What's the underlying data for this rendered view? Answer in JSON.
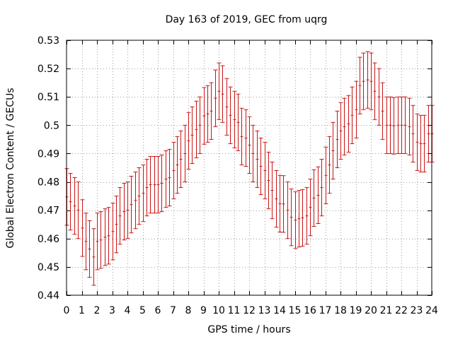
{
  "chart_data": {
    "type": "scatter",
    "title": "Day 163 of 2019, GEC from uqrg",
    "xlabel": "GPS time / hours",
    "ylabel": "Global Electron Content / GECUs",
    "xlim": [
      0,
      24
    ],
    "ylim": [
      0.44,
      0.53
    ],
    "x_ticks": [
      0,
      1,
      2,
      3,
      4,
      5,
      6,
      7,
      8,
      9,
      10,
      11,
      12,
      13,
      14,
      15,
      16,
      17,
      18,
      19,
      20,
      21,
      22,
      23,
      24
    ],
    "x_tick_labels": [
      "0",
      "1",
      "2",
      "3",
      "4",
      "5",
      "6",
      "7",
      "8",
      "9",
      "10",
      "11",
      "12",
      "13",
      "14",
      "15",
      "16",
      "17",
      "18",
      "19",
      "20",
      "21",
      "22",
      "23",
      "24"
    ],
    "y_ticks": [
      0.44,
      0.45,
      0.46,
      0.47,
      0.48,
      0.49,
      0.5,
      0.51,
      0.52,
      0.53
    ],
    "y_tick_labels": [
      "0.44",
      "0.45",
      "0.46",
      "0.47",
      "0.48",
      "0.49",
      "0.5",
      "0.51",
      "0.52",
      "0.53"
    ],
    "grid": true,
    "error": 0.01,
    "series": [
      {
        "name": "GEC",
        "color": "#c81414",
        "x": [
          0,
          0.25,
          0.5,
          0.75,
          1,
          1.25,
          1.5,
          1.75,
          2,
          2.25,
          2.5,
          2.75,
          3,
          3.25,
          3.5,
          3.75,
          4,
          4.25,
          4.5,
          4.75,
          5,
          5.25,
          5.5,
          5.75,
          6,
          6.25,
          6.5,
          6.75,
          7,
          7.25,
          7.5,
          7.75,
          8,
          8.25,
          8.5,
          8.75,
          9,
          9.25,
          9.5,
          9.75,
          10,
          10.25,
          10.5,
          10.75,
          11,
          11.25,
          11.5,
          11.75,
          12,
          12.25,
          12.5,
          12.75,
          13,
          13.25,
          13.5,
          13.75,
          14,
          14.25,
          14.5,
          14.75,
          15,
          15.25,
          15.5,
          15.75,
          16,
          16.25,
          16.5,
          16.75,
          17,
          17.25,
          17.5,
          17.75,
          18,
          18.25,
          18.5,
          18.75,
          19,
          19.25,
          19.5,
          19.75,
          20,
          20.25,
          20.5,
          20.75,
          21,
          21.25,
          21.5,
          21.75,
          22,
          22.25,
          22.5,
          22.75,
          23,
          23.25,
          23.5,
          23.75,
          24
        ],
        "values": [
          0.4747,
          0.473,
          0.4715,
          0.47,
          0.4637,
          0.459,
          0.4563,
          0.4535,
          0.459,
          0.4595,
          0.4605,
          0.461,
          0.4625,
          0.465,
          0.468,
          0.4695,
          0.47,
          0.472,
          0.4735,
          0.475,
          0.476,
          0.478,
          0.479,
          0.479,
          0.479,
          0.4795,
          0.481,
          0.4815,
          0.484,
          0.486,
          0.488,
          0.49,
          0.4945,
          0.4965,
          0.4985,
          0.5,
          0.5033,
          0.504,
          0.505,
          0.5095,
          0.512,
          0.511,
          0.5065,
          0.5035,
          0.502,
          0.501,
          0.496,
          0.4955,
          0.493,
          0.49,
          0.488,
          0.4855,
          0.484,
          0.4805,
          0.477,
          0.474,
          0.4723,
          0.4722,
          0.47,
          0.4675,
          0.4665,
          0.467,
          0.4673,
          0.468,
          0.471,
          0.4743,
          0.4753,
          0.478,
          0.4823,
          0.486,
          0.491,
          0.495,
          0.498,
          0.4995,
          0.5005,
          0.5035,
          0.5055,
          0.514,
          0.5155,
          0.516,
          0.5155,
          0.512,
          0.51,
          0.505,
          0.5,
          0.5,
          0.4998,
          0.5,
          0.5,
          0.5,
          0.4995,
          0.497,
          0.494,
          0.4935,
          0.4935,
          0.497,
          0.497
        ]
      }
    ]
  }
}
